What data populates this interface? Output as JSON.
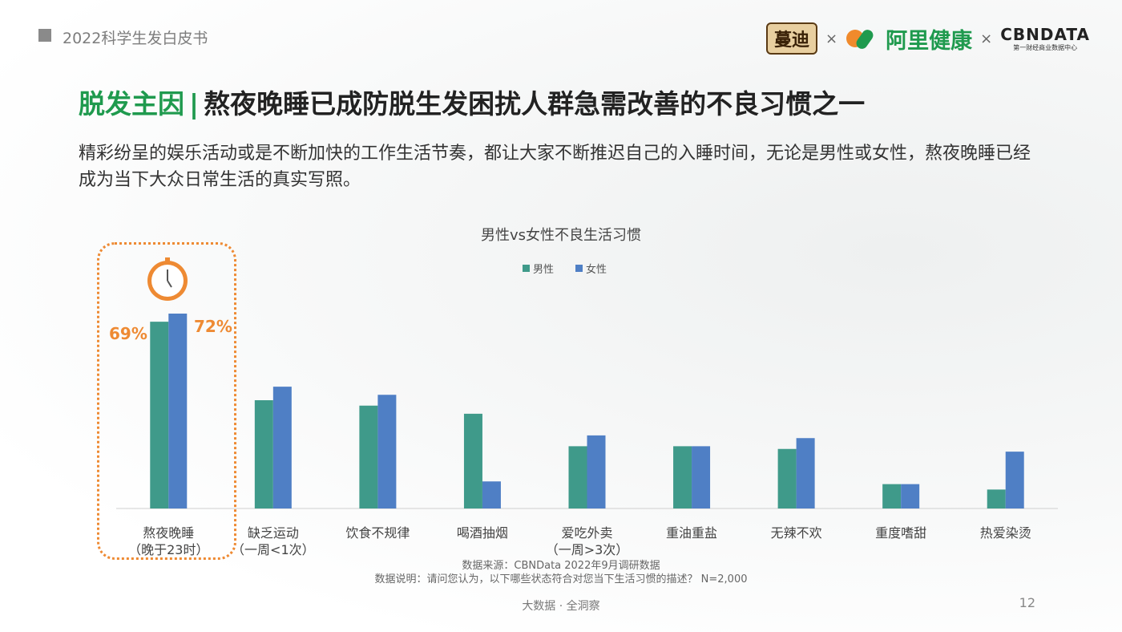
{
  "header": {
    "report_title": "2022科学生发白皮书",
    "logos": {
      "mandi": "蔓迪",
      "ali": "阿里健康",
      "cbn": "CBNDATA",
      "cbn_sub": "第一财经商业数据中心",
      "separator": "×"
    }
  },
  "headline": {
    "key": "脱发主因",
    "divider": "|",
    "text": "熬夜晚睡已成防脱生发困扰人群急需改善的不良习惯之一"
  },
  "subtitle": "精彩纷呈的娱乐活动或是不断加快的工作生活节奏，都让大家不断推迟自己的入睡时间，无论是男性或女性，熬夜晚睡已经成为当下大众日常生活的真实写照。",
  "highlight": {
    "male_label": "69%",
    "female_label": "72%",
    "icon": "clock-icon"
  },
  "chart_data": {
    "type": "bar",
    "title": "男性vs女性不良生活习惯",
    "categories": [
      [
        "熬夜晚睡",
        "（晚于23时）"
      ],
      [
        "缺乏运动",
        "（一周<1次）"
      ],
      [
        "饮食不规律"
      ],
      [
        "喝酒抽烟"
      ],
      [
        "爱吃外卖",
        "（一周>3次）"
      ],
      [
        "重油重盐"
      ],
      [
        "无辣不欢"
      ],
      [
        "重度嗜甜"
      ],
      [
        "热爱染烫"
      ]
    ],
    "series": [
      {
        "name": "男性",
        "color": "#3f9a8a",
        "values": [
          69,
          40,
          38,
          35,
          23,
          23,
          22,
          9,
          7
        ]
      },
      {
        "name": "女性",
        "color": "#4f7fc5",
        "values": [
          72,
          45,
          42,
          10,
          27,
          23,
          26,
          9,
          21
        ]
      }
    ],
    "ylim": [
      0,
      80
    ],
    "grid": false,
    "legend_position": "top"
  },
  "source": {
    "line1": "数据来源：CBNData 2022年9月调研数据",
    "line2": "数据说明：请问您认为，以下哪些状态符合对您当下生活习惯的描述？ N=2,000"
  },
  "footer": {
    "tagline": "大数据 · 全洞察",
    "page_number": "12"
  }
}
